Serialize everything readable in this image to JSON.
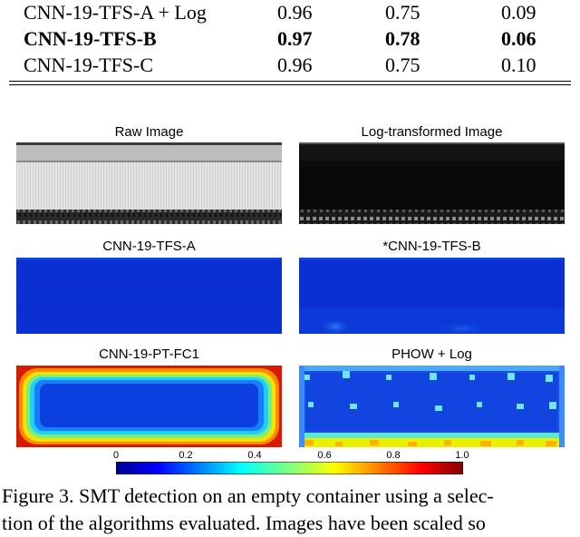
{
  "table": {
    "rows": [
      {
        "name": "CNN-19-TFS-A + Log",
        "v1": "0.96",
        "v2": "0.75",
        "v3": "0.09",
        "bold": false
      },
      {
        "name": "CNN-19-TFS-B",
        "v1": "0.97",
        "v2": "0.78",
        "v3": "0.06",
        "bold": true
      },
      {
        "name": "CNN-19-TFS-C",
        "v1": "0.96",
        "v2": "0.75",
        "v3": "0.10",
        "bold": false
      }
    ]
  },
  "figure": {
    "panels": [
      {
        "title": "Raw Image"
      },
      {
        "title": "Log-transformed Image"
      },
      {
        "title": "CNN-19-TFS-A"
      },
      {
        "title": "*CNN-19-TFS-B"
      },
      {
        "title": "CNN-19-PT-FC1"
      },
      {
        "title": "PHOW + Log"
      }
    ],
    "colorbar": {
      "ticks": [
        "0",
        "0.2",
        "0.4",
        "0.6",
        "0.8",
        "1.0"
      ],
      "colormap": "jet"
    },
    "caption": {
      "line1": "Figure 3.  SMT detection on an empty container using a selec-",
      "line2": "tion of the algorithms evaluated.  Images have been scaled so"
    }
  }
}
